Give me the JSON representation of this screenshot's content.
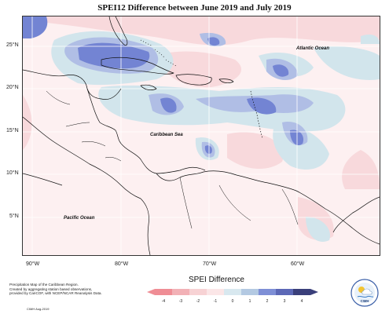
{
  "title": "SPEI12 Difference between June 2019 and July 2019",
  "labels": {
    "atlantic": "Atlantic Ocean",
    "caribbean": "Caribbean Sea",
    "pacific": "Pacific Ocean"
  },
  "lat_ticks": [
    "25°N",
    "20°N",
    "15°N",
    "10°N",
    "5°N"
  ],
  "lon_ticks": [
    "90°W",
    "80°W",
    "70°W",
    "60°W"
  ],
  "footer": {
    "line1": "Precipitation Map of the Caribbean Region.",
    "line2": "Created by aggregating station based observations,",
    "line3": "provided by CariCOF, with NCEP/NCAR Reanalysis Data.",
    "date": "CIMH Aug-2019"
  },
  "legend": {
    "title": "SPEI Difference",
    "ticks": [
      "-4",
      "-3",
      "-2",
      "-1",
      "0",
      "1",
      "2",
      "3",
      "4"
    ],
    "colors": [
      "#ef8d95",
      "#f2b1b6",
      "#f7d2d4",
      "#fbe6e7",
      "#d8e8ef",
      "#b3c9e2",
      "#7e8fd6",
      "#5c68b6",
      "#3a3f7a"
    ]
  },
  "logo_text": "CIMH",
  "colors": {
    "light_pink": "#fbe4e6",
    "pink": "#f6cfd3",
    "light_blue": "#cde2ea",
    "mid_blue": "#aebde4",
    "blue": "#7282d2"
  }
}
